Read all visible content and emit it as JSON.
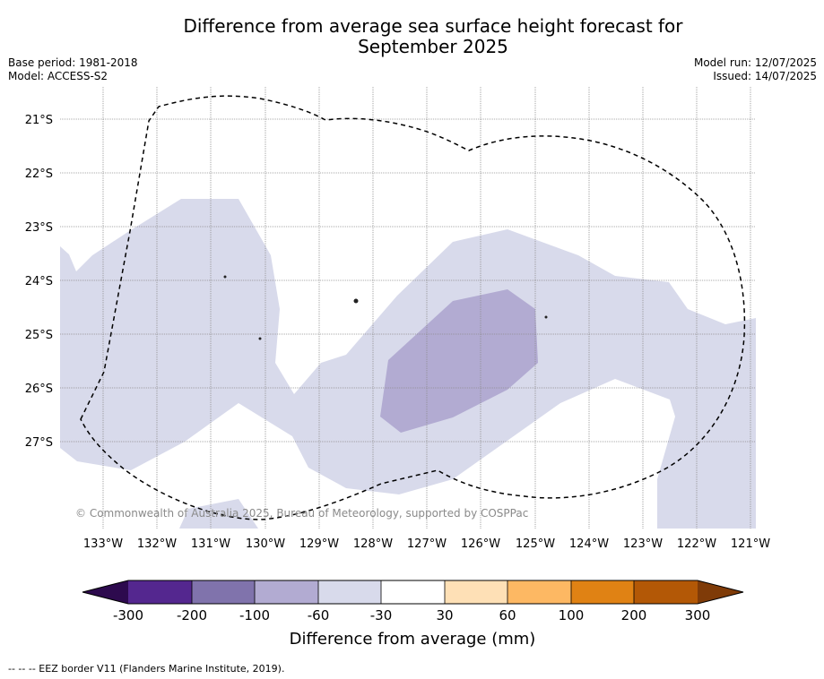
{
  "title_line1": "Difference from average sea surface height forecast for",
  "title_line2": "September 2025",
  "base_period": "Base period: 1981-2018",
  "model": "Model: ACCESS-S2",
  "model_run": "Model run: 12/07/2025",
  "issued": "Issued: 14/07/2025",
  "lat_labels": [
    "21°S",
    "22°S",
    "23°S",
    "24°S",
    "25°S",
    "26°S",
    "27°S"
  ],
  "lon_labels": [
    "133°W",
    "132°W",
    "131°W",
    "130°W",
    "129°W",
    "128°W",
    "127°W",
    "126°W",
    "125°W",
    "124°W",
    "123°W",
    "122°W",
    "121°W"
  ],
  "copyright": "© Commonwealth of Australia 2025, Bureau of Meteorology, supported by COSPPac",
  "colorbar": {
    "title": "Difference from average (mm)",
    "tick_labels": [
      "-300",
      "-200",
      "-100",
      "-60",
      "-30",
      "30",
      "60",
      "100",
      "200",
      "300"
    ],
    "colors": {
      "below_min": "#2d0a4e",
      "b1": "#54278f",
      "b2": "#8073ac",
      "b3": "#b2abd2",
      "b4": "#d8daeb",
      "b5": "#ffffff",
      "b6": "#fee0b6",
      "b7": "#fdb863",
      "b8": "#e08214",
      "b9": "#b35806",
      "above_max": "#7f3b08"
    }
  },
  "footnote": "--  --  -- EEZ border V11 (Flanders Marine Institute, 2019)."
}
